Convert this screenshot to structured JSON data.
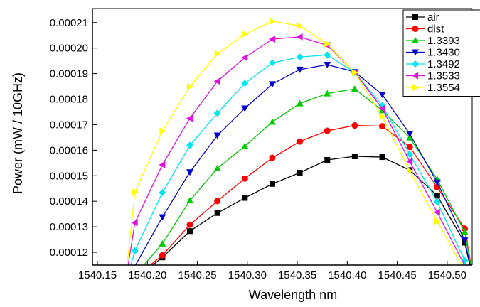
{
  "chart_data": {
    "type": "line",
    "xlabel": "Wavelength  nm",
    "ylabel": "Power  (mW / 10GHz)",
    "xlim": [
      1540.145,
      1540.525
    ],
    "ylim": [
      0.000115,
      0.0002155
    ],
    "x_ticks": [
      1540.15,
      1540.2,
      1540.25,
      1540.3,
      1540.35,
      1540.4,
      1540.45,
      1540.5
    ],
    "x_tick_labels": [
      "1540.15",
      "1540.20",
      "1540.25",
      "1540.30",
      "1540.35",
      "1540.40",
      "1540.45",
      "1540.50"
    ],
    "y_ticks": [
      0.00012,
      0.00013,
      0.00014,
      0.00015,
      0.00016,
      0.00017,
      0.00018,
      0.00019,
      0.0002,
      0.00021
    ],
    "y_tick_labels": [
      "0.00012",
      "0.00013",
      "0.00014",
      "0.00015",
      "0.00016",
      "0.00017",
      "0.00018",
      "0.00019",
      "0.00020",
      "0.00021"
    ],
    "grid": false,
    "legend_position": "top-right",
    "x": [
      1540.1875,
      1540.215,
      1540.2425,
      1540.27,
      1540.2975,
      1540.325,
      1540.3525,
      1540.38,
      1540.4075,
      1540.435,
      1540.4625,
      1540.49,
      1540.5175
    ],
    "series": [
      {
        "name": "air",
        "color": "#000000",
        "marker": "square",
        "values": [
          0.0001095,
          0.000118,
          0.0001283,
          0.0001354,
          0.0001413,
          0.0001468,
          0.0001512,
          0.0001562,
          0.0001576,
          0.0001573,
          0.0001522,
          0.0001422,
          0.0001238
        ]
      },
      {
        "name": "dist",
        "color": "#ff0000",
        "marker": "circle",
        "values": [
          0.0001102,
          0.0001188,
          0.0001308,
          0.0001401,
          0.0001489,
          0.000157,
          0.0001634,
          0.0001676,
          0.0001697,
          0.0001694,
          0.0001613,
          0.0001455,
          0.0001293
        ]
      },
      {
        "name": "1.3393",
        "color": "#00cc00",
        "marker": "triangle-up",
        "values": [
          0.000111,
          0.0001234,
          0.0001403,
          0.0001529,
          0.0001616,
          0.0001711,
          0.0001783,
          0.0001822,
          0.000184,
          0.0001756,
          0.0001649,
          0.0001486,
          0.000128
        ]
      },
      {
        "name": "1.3430",
        "color": "#0000cc",
        "marker": "triangle-down",
        "values": [
          0.0001146,
          0.0001338,
          0.0001514,
          0.0001658,
          0.0001764,
          0.0001859,
          0.0001916,
          0.0001935,
          0.0001907,
          0.0001818,
          0.0001664,
          0.0001474,
          0.0001247
        ]
      },
      {
        "name": "1.3492",
        "color": "#00e5ee",
        "marker": "diamond",
        "values": [
          0.0001206,
          0.0001434,
          0.0001619,
          0.0001745,
          0.0001862,
          0.0001942,
          0.0001965,
          0.0001973,
          0.0001904,
          0.0001775,
          0.0001584,
          0.0001398,
          0.0001168
        ]
      },
      {
        "name": "1.3533",
        "color": "#e010e0",
        "marker": "triangle-left",
        "values": [
          0.0001316,
          0.0001543,
          0.0001725,
          0.000187,
          0.0001963,
          0.0002035,
          0.0002044,
          0.0002011,
          0.0001904,
          0.0001763,
          0.0001556,
          0.0001357,
          0.0001148
        ]
      },
      {
        "name": "1.3554",
        "color": "#ffff00",
        "marker": "triangle-right",
        "values": [
          0.0001436,
          0.0001675,
          0.0001849,
          0.0001978,
          0.0002055,
          0.0002105,
          0.0002087,
          0.0002016,
          0.0001904,
          0.0001732,
          0.0001519,
          0.0001322,
          0.0001128
        ]
      }
    ]
  }
}
